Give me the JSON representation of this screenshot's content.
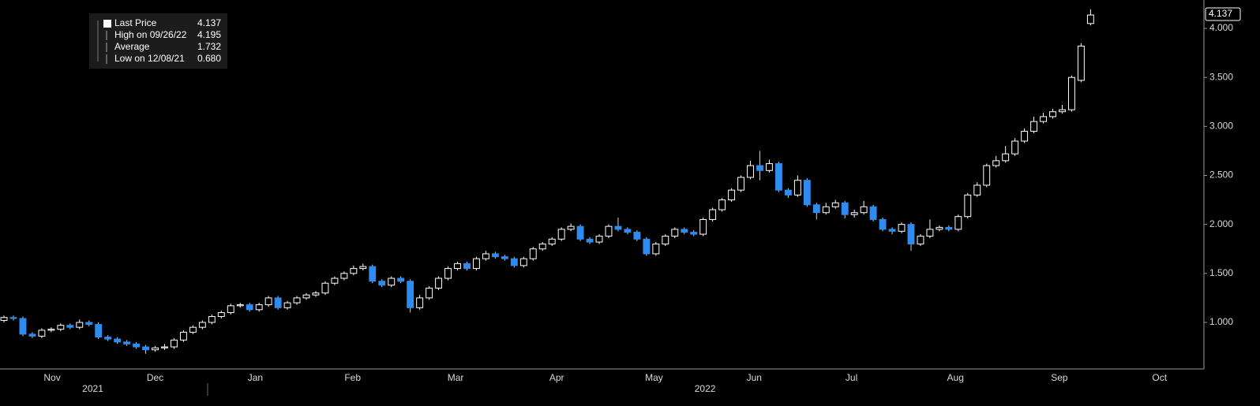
{
  "chart_data": {
    "type": "candlestick",
    "up_color": "#ffffff",
    "down_color": "#2e8bf0",
    "background": "#000000",
    "open": [
      1.02,
      1.05,
      1.04,
      0.88,
      0.86,
      0.92,
      0.93,
      0.97,
      0.95,
      1.0,
      0.98,
      0.85,
      0.83,
      0.8,
      0.78,
      0.75,
      0.72,
      0.74,
      0.75,
      0.82,
      0.9,
      0.95,
      1.0,
      1.06,
      1.1,
      1.17,
      1.18,
      1.13,
      1.18,
      1.25,
      1.15,
      1.2,
      1.25,
      1.28,
      1.3,
      1.4,
      1.45,
      1.5,
      1.55,
      1.57,
      1.42,
      1.38,
      1.45,
      1.42,
      1.15,
      1.25,
      1.35,
      1.45,
      1.55,
      1.6,
      1.55,
      1.65,
      1.7,
      1.67,
      1.65,
      1.58,
      1.65,
      1.75,
      1.8,
      1.85,
      1.95,
      1.98,
      1.85,
      1.82,
      1.88,
      1.98,
      1.95,
      1.92,
      1.85,
      1.7,
      1.8,
      1.88,
      1.95,
      1.92,
      1.9,
      2.05,
      2.15,
      2.25,
      2.35,
      2.48,
      2.6,
      2.55,
      2.62,
      2.35,
      2.3,
      2.45,
      2.2,
      2.12,
      2.18,
      2.22,
      2.1,
      2.12,
      2.18,
      2.05,
      1.95,
      1.93,
      2.0,
      1.8,
      1.88,
      1.95,
      1.97,
      1.95,
      2.08,
      2.3,
      2.4,
      2.6,
      2.65,
      2.72,
      2.85,
      2.95,
      3.05,
      3.1,
      3.15,
      3.17,
      3.47,
      4.05
    ],
    "high": [
      1.07,
      1.07,
      1.06,
      0.9,
      0.94,
      0.95,
      0.99,
      0.99,
      1.03,
      1.02,
      1.0,
      0.87,
      0.85,
      0.82,
      0.8,
      0.77,
      0.76,
      0.78,
      0.84,
      0.92,
      0.97,
      1.02,
      1.08,
      1.12,
      1.19,
      1.2,
      1.2,
      1.2,
      1.27,
      1.27,
      1.22,
      1.27,
      1.3,
      1.32,
      1.42,
      1.47,
      1.52,
      1.58,
      1.6,
      1.59,
      1.44,
      1.47,
      1.47,
      1.44,
      1.28,
      1.37,
      1.47,
      1.57,
      1.62,
      1.62,
      1.67,
      1.73,
      1.72,
      1.69,
      1.67,
      1.67,
      1.77,
      1.82,
      1.87,
      1.97,
      2.01,
      2.0,
      1.87,
      1.9,
      2.0,
      2.07,
      1.97,
      1.94,
      1.87,
      1.82,
      1.9,
      1.97,
      1.97,
      1.94,
      2.07,
      2.17,
      2.27,
      2.37,
      2.5,
      2.65,
      2.75,
      2.66,
      2.64,
      2.37,
      2.5,
      2.47,
      2.22,
      2.22,
      2.25,
      2.24,
      2.15,
      2.24,
      2.2,
      2.07,
      1.97,
      2.02,
      2.02,
      1.9,
      2.05,
      1.99,
      1.99,
      2.1,
      2.32,
      2.43,
      2.62,
      2.7,
      2.8,
      2.88,
      2.98,
      3.1,
      3.14,
      3.18,
      3.22,
      3.52,
      3.85,
      4.195
    ],
    "low": [
      1.0,
      1.02,
      0.86,
      0.84,
      0.84,
      0.9,
      0.91,
      0.93,
      0.93,
      0.96,
      0.83,
      0.81,
      0.78,
      0.76,
      0.73,
      0.68,
      0.7,
      0.72,
      0.73,
      0.8,
      0.88,
      0.93,
      0.98,
      1.04,
      1.08,
      1.15,
      1.11,
      1.11,
      1.16,
      1.13,
      1.13,
      1.18,
      1.23,
      1.26,
      1.28,
      1.38,
      1.43,
      1.48,
      1.53,
      1.4,
      1.36,
      1.36,
      1.4,
      1.1,
      1.13,
      1.23,
      1.33,
      1.43,
      1.53,
      1.53,
      1.53,
      1.63,
      1.65,
      1.63,
      1.56,
      1.56,
      1.63,
      1.73,
      1.78,
      1.83,
      1.93,
      1.83,
      1.8,
      1.8,
      1.86,
      1.93,
      1.9,
      1.83,
      1.68,
      1.68,
      1.78,
      1.86,
      1.9,
      1.88,
      1.88,
      2.03,
      2.13,
      2.23,
      2.33,
      2.46,
      2.45,
      2.53,
      2.33,
      2.27,
      2.28,
      2.18,
      2.05,
      2.1,
      2.16,
      2.06,
      2.07,
      2.1,
      2.03,
      1.93,
      1.9,
      1.91,
      1.73,
      1.78,
      1.86,
      1.93,
      1.93,
      1.93,
      2.06,
      2.28,
      2.38,
      2.58,
      2.63,
      2.7,
      2.83,
      2.93,
      3.03,
      3.08,
      3.13,
      3.15,
      3.45,
      4.03
    ],
    "close": [
      1.05,
      1.04,
      0.88,
      0.86,
      0.92,
      0.93,
      0.97,
      0.95,
      1.0,
      0.98,
      0.85,
      0.83,
      0.8,
      0.78,
      0.75,
      0.72,
      0.74,
      0.75,
      0.82,
      0.9,
      0.95,
      1.0,
      1.06,
      1.1,
      1.17,
      1.18,
      1.13,
      1.18,
      1.25,
      1.15,
      1.2,
      1.25,
      1.28,
      1.3,
      1.4,
      1.45,
      1.5,
      1.55,
      1.57,
      1.42,
      1.38,
      1.45,
      1.42,
      1.15,
      1.25,
      1.35,
      1.45,
      1.55,
      1.6,
      1.55,
      1.65,
      1.7,
      1.67,
      1.65,
      1.58,
      1.65,
      1.75,
      1.8,
      1.85,
      1.95,
      1.98,
      1.85,
      1.82,
      1.88,
      1.98,
      1.95,
      1.92,
      1.85,
      1.7,
      1.8,
      1.88,
      1.95,
      1.92,
      1.9,
      2.05,
      2.15,
      2.25,
      2.35,
      2.48,
      2.6,
      2.55,
      2.62,
      2.35,
      2.3,
      2.45,
      2.2,
      2.12,
      2.18,
      2.22,
      2.1,
      2.12,
      2.18,
      2.05,
      1.95,
      1.93,
      2.0,
      1.8,
      1.88,
      1.95,
      1.97,
      1.95,
      2.08,
      2.3,
      2.4,
      2.6,
      2.65,
      2.72,
      2.85,
      2.95,
      3.05,
      3.1,
      3.15,
      3.17,
      3.5,
      3.82,
      4.137
    ],
    "xlim": [
      -0.42,
      127
    ],
    "xticks": [
      {
        "value": 5.1,
        "label": "Nov"
      },
      {
        "value": 16,
        "label": "Dec"
      },
      {
        "value": 26.6,
        "label": "Jan"
      },
      {
        "value": 36.9,
        "label": "Feb"
      },
      {
        "value": 47.8,
        "label": "Mar"
      },
      {
        "value": 58.5,
        "label": "Apr"
      },
      {
        "value": 68.8,
        "label": "May"
      },
      {
        "value": 79.4,
        "label": "Jun"
      },
      {
        "value": 89.7,
        "label": "Jul"
      },
      {
        "value": 100.7,
        "label": "Aug"
      },
      {
        "value": 111.7,
        "label": "Sep"
      },
      {
        "value": 122.3,
        "label": "Oct"
      }
    ],
    "year_ticks": [
      {
        "value": 9.4,
        "label": "2021"
      },
      {
        "value": 74.2,
        "label": "2022"
      }
    ],
    "ylim": [
      0.525,
      4.29
    ],
    "yticks": [
      {
        "value": 1,
        "label": "1.000"
      },
      {
        "value": 1.5,
        "label": "1.500"
      },
      {
        "value": 2,
        "label": "2.000"
      },
      {
        "value": 2.5,
        "label": "2.500"
      },
      {
        "value": 3,
        "label": "3.000"
      },
      {
        "value": 3.5,
        "label": "3.500"
      },
      {
        "value": 4,
        "label": "4.000"
      }
    ],
    "legend": [
      {
        "label": "Last Price",
        "value": "4.137"
      },
      {
        "label": "High on 09/26/22",
        "value": "4.195"
      },
      {
        "label": "Average",
        "value": "1.732"
      },
      {
        "label": "Low on 12/08/21",
        "value": "0.680"
      }
    ]
  }
}
